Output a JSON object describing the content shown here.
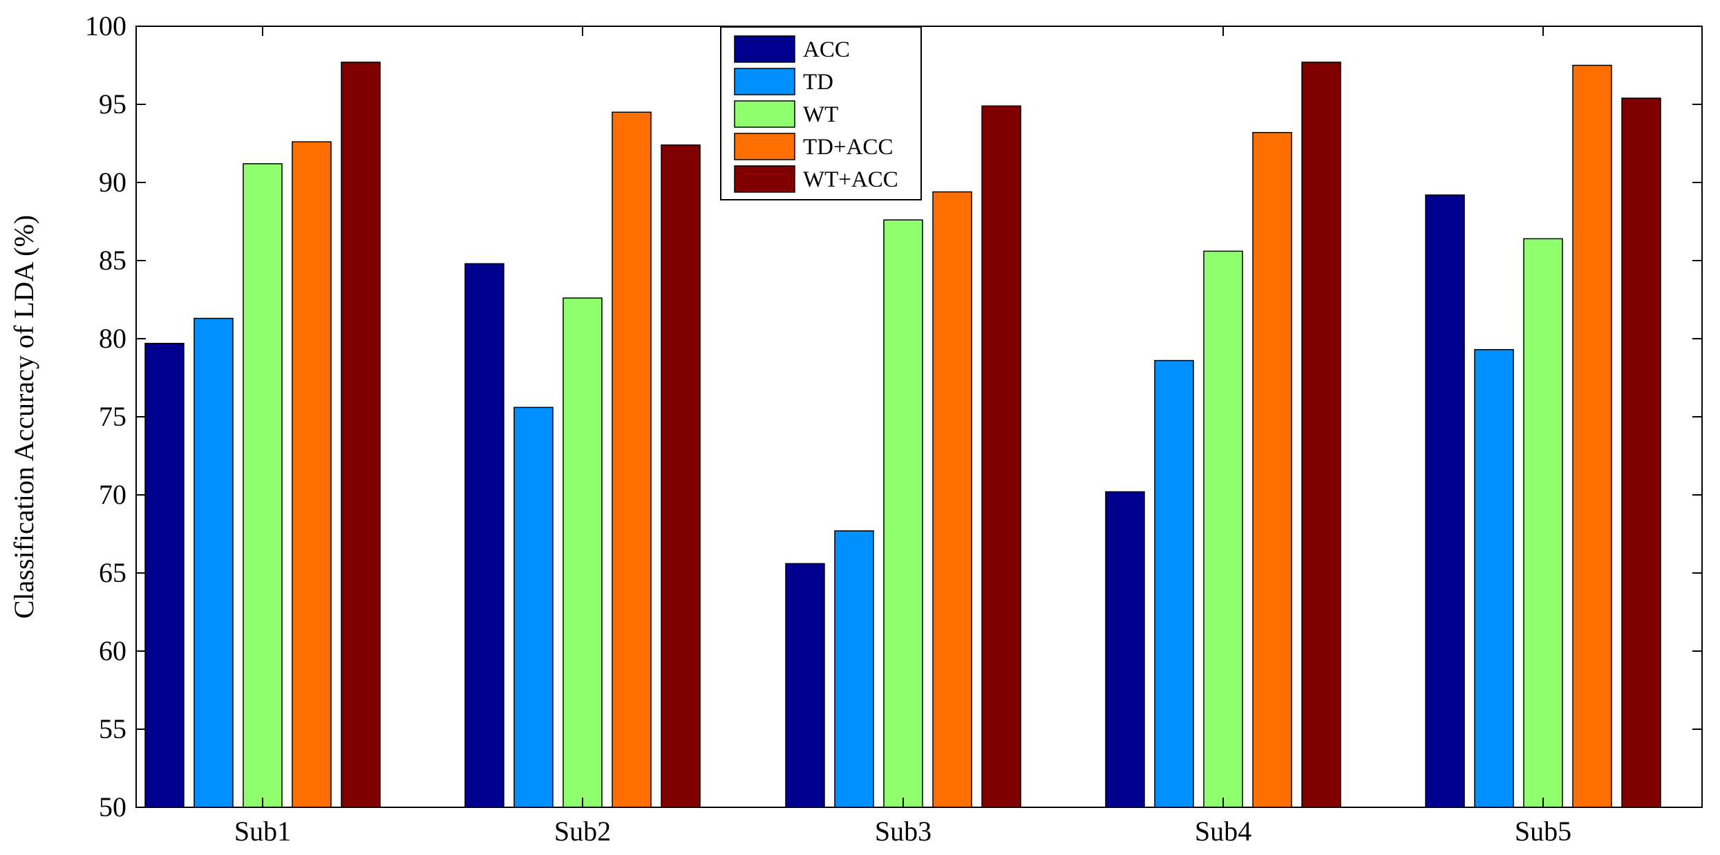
{
  "chart_data": {
    "type": "bar",
    "title": "",
    "xlabel": "",
    "ylabel": "Classification Accuracy of LDA (%)",
    "ylim": [
      50,
      100
    ],
    "yticks": [
      50,
      55,
      60,
      65,
      70,
      75,
      80,
      85,
      90,
      95,
      100
    ],
    "categories": [
      "Sub1",
      "Sub2",
      "Sub3",
      "Sub4",
      "Sub5"
    ],
    "series": [
      {
        "name": "ACC",
        "color": "#00008f",
        "values": [
          79.7,
          84.8,
          65.6,
          70.2,
          89.2
        ]
      },
      {
        "name": "TD",
        "color": "#008fff",
        "values": [
          81.3,
          75.6,
          67.7,
          78.6,
          79.3
        ]
      },
      {
        "name": "WT",
        "color": "#8fff70",
        "values": [
          91.2,
          82.6,
          87.6,
          85.6,
          86.4
        ]
      },
      {
        "name": "TD+ACC",
        "color": "#ff7000",
        "values": [
          92.6,
          94.5,
          89.4,
          93.2,
          97.5
        ]
      },
      {
        "name": "WT+ACC",
        "color": "#800000",
        "values": [
          97.7,
          92.4,
          94.9,
          97.7,
          95.4
        ]
      }
    ],
    "grid": false,
    "legend_position": "top-center"
  }
}
